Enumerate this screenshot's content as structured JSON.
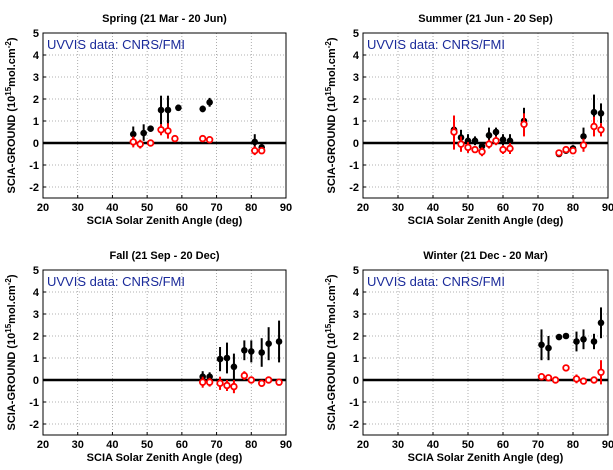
{
  "colors": {
    "satellite_pos": "#000000",
    "satellite_neg": "#ff0000",
    "note": "#1a2a9a",
    "zero_line": "#000000",
    "grid": "#999999"
  },
  "chart_data": [
    {
      "type": "scatter",
      "title": "Spring (21 Mar - 20 Jun)",
      "annotation": "UVVIS data: CNRS/FMI",
      "xlabel": "SCIA Solar Zenith Angle (deg)",
      "ylabel": "SCIA-GROUND (10",
      "ylabel_sup": "15",
      "ylabel_tail": "mol.cm",
      "ylabel_sup2": "-2",
      "ylabel_end": ")",
      "xlim": [
        20,
        90
      ],
      "ylim": [
        -2.5,
        5
      ],
      "xticks": [
        20,
        30,
        40,
        50,
        60,
        70,
        80,
        90
      ],
      "yticks": [
        -2,
        -1,
        0,
        1,
        2,
        3,
        4,
        5
      ],
      "grid": true,
      "series": [
        {
          "marker": "filled-black",
          "points": [
            {
              "x": 46,
              "y": 0.4,
              "lo": 0.1,
              "hi": 0.75
            },
            {
              "x": 49,
              "y": 0.45,
              "lo": 0.1,
              "hi": 0.85
            },
            {
              "x": 51,
              "y": 0.65,
              "lo": 0.55,
              "hi": 0.75
            },
            {
              "x": 54,
              "y": 1.5,
              "lo": 0.85,
              "hi": 2.15
            },
            {
              "x": 56,
              "y": 1.5,
              "lo": 0.85,
              "hi": 2.15
            },
            {
              "x": 59,
              "y": 1.6,
              "lo": 1.5,
              "hi": 1.75
            },
            {
              "x": 66,
              "y": 1.55,
              "lo": 1.4,
              "hi": 1.7
            },
            {
              "x": 68,
              "y": 1.85,
              "lo": 1.65,
              "hi": 2.05
            },
            {
              "x": 81,
              "y": 0.05,
              "lo": -0.3,
              "hi": 0.4
            },
            {
              "x": 83,
              "y": -0.2,
              "lo": -0.35,
              "hi": -0.05
            }
          ]
        },
        {
          "marker": "open-red",
          "points": [
            {
              "x": 46,
              "y": 0.05,
              "lo": -0.2,
              "hi": 0.3
            },
            {
              "x": 48,
              "y": -0.05,
              "lo": -0.25,
              "hi": 0.15
            },
            {
              "x": 51,
              "y": 0.0,
              "lo": -0.1,
              "hi": 0.1
            },
            {
              "x": 54,
              "y": 0.6,
              "lo": 0.35,
              "hi": 0.85
            },
            {
              "x": 56,
              "y": 0.55,
              "lo": 0.2,
              "hi": 0.9
            },
            {
              "x": 58,
              "y": 0.2,
              "lo": 0.05,
              "hi": 0.35
            },
            {
              "x": 66,
              "y": 0.2,
              "lo": 0.1,
              "hi": 0.3
            },
            {
              "x": 68,
              "y": 0.15,
              "lo": 0.0,
              "hi": 0.3
            },
            {
              "x": 81,
              "y": -0.35,
              "lo": -0.55,
              "hi": -0.15
            },
            {
              "x": 83,
              "y": -0.35,
              "lo": -0.5,
              "hi": -0.2
            }
          ]
        }
      ]
    },
    {
      "type": "scatter",
      "title": "Summer (21 Jun - 20 Sep)",
      "annotation": "UVVIS data: CNRS/FMI",
      "xlabel": "SCIA Solar Zenith Angle (deg)",
      "ylabel": "SCIA-GROUND (10",
      "ylabel_sup": "15",
      "ylabel_tail": "mol.cm",
      "ylabel_sup2": "-2",
      "ylabel_end": ")",
      "xlim": [
        20,
        90
      ],
      "ylim": [
        -2.5,
        5
      ],
      "xticks": [
        20,
        30,
        40,
        50,
        60,
        70,
        80,
        90
      ],
      "yticks": [
        -2,
        -1,
        0,
        1,
        2,
        3,
        4,
        5
      ],
      "grid": true,
      "series": [
        {
          "marker": "filled-black",
          "points": [
            {
              "x": 46,
              "y": 0.6,
              "lo": 0.1,
              "hi": 1.1
            },
            {
              "x": 48,
              "y": 0.25,
              "lo": -0.1,
              "hi": 0.6
            },
            {
              "x": 50,
              "y": 0.1,
              "lo": -0.2,
              "hi": 0.4
            },
            {
              "x": 52,
              "y": 0.1,
              "lo": -0.1,
              "hi": 0.3
            },
            {
              "x": 54,
              "y": -0.15,
              "lo": -0.3,
              "hi": 0.0
            },
            {
              "x": 56,
              "y": 0.35,
              "lo": 0.0,
              "hi": 0.7
            },
            {
              "x": 58,
              "y": 0.5,
              "lo": 0.3,
              "hi": 0.7
            },
            {
              "x": 60,
              "y": 0.15,
              "lo": -0.1,
              "hi": 0.4
            },
            {
              "x": 62,
              "y": 0.1,
              "lo": -0.2,
              "hi": 0.4
            },
            {
              "x": 66,
              "y": 1.0,
              "lo": 0.4,
              "hi": 1.6
            },
            {
              "x": 76,
              "y": -0.5,
              "lo": -0.6,
              "hi": -0.4
            },
            {
              "x": 78,
              "y": -0.35,
              "lo": -0.45,
              "hi": -0.25
            },
            {
              "x": 80,
              "y": -0.25,
              "lo": -0.4,
              "hi": -0.1
            },
            {
              "x": 83,
              "y": 0.3,
              "lo": -0.1,
              "hi": 0.7
            },
            {
              "x": 86,
              "y": 1.4,
              "lo": 0.6,
              "hi": 2.2
            },
            {
              "x": 88,
              "y": 1.35,
              "lo": 0.9,
              "hi": 1.8
            }
          ]
        },
        {
          "marker": "open-red",
          "points": [
            {
              "x": 46,
              "y": 0.5,
              "lo": -0.3,
              "hi": 1.25
            },
            {
              "x": 48,
              "y": -0.05,
              "lo": -0.4,
              "hi": 0.3
            },
            {
              "x": 50,
              "y": -0.2,
              "lo": -0.45,
              "hi": 0.05
            },
            {
              "x": 52,
              "y": -0.3,
              "lo": -0.45,
              "hi": -0.15
            },
            {
              "x": 54,
              "y": -0.4,
              "lo": -0.6,
              "hi": -0.2
            },
            {
              "x": 56,
              "y": -0.05,
              "lo": -0.25,
              "hi": 0.15
            },
            {
              "x": 58,
              "y": 0.1,
              "lo": -0.1,
              "hi": 0.3
            },
            {
              "x": 60,
              "y": -0.3,
              "lo": -0.5,
              "hi": -0.1
            },
            {
              "x": 62,
              "y": -0.25,
              "lo": -0.5,
              "hi": 0.0
            },
            {
              "x": 66,
              "y": 0.85,
              "lo": 0.3,
              "hi": 1.35
            },
            {
              "x": 76,
              "y": -0.45,
              "lo": -0.55,
              "hi": -0.35
            },
            {
              "x": 78,
              "y": -0.3,
              "lo": -0.4,
              "hi": -0.2
            },
            {
              "x": 80,
              "y": -0.35,
              "lo": -0.5,
              "hi": -0.2
            },
            {
              "x": 83,
              "y": -0.1,
              "lo": -0.4,
              "hi": 0.2
            },
            {
              "x": 86,
              "y": 0.75,
              "lo": 0.3,
              "hi": 1.2
            },
            {
              "x": 88,
              "y": 0.6,
              "lo": 0.3,
              "hi": 0.9
            }
          ]
        }
      ]
    },
    {
      "type": "scatter",
      "title": "Fall (21 Sep - 20 Dec)",
      "annotation": "UVVIS data: CNRS/FMI",
      "xlabel": "SCIA Solar Zenith Angle (deg)",
      "ylabel": "SCIA-GROUND (10",
      "ylabel_sup": "15",
      "ylabel_tail": "mol.cm",
      "ylabel_sup2": "-2",
      "ylabel_end": ")",
      "xlim": [
        20,
        90
      ],
      "ylim": [
        -2.5,
        5
      ],
      "xticks": [
        20,
        30,
        40,
        50,
        60,
        70,
        80,
        90
      ],
      "yticks": [
        -2,
        -1,
        0,
        1,
        2,
        3,
        4,
        5
      ],
      "grid": true,
      "series": [
        {
          "marker": "filled-black",
          "points": [
            {
              "x": 66,
              "y": 0.15,
              "lo": -0.1,
              "hi": 0.4
            },
            {
              "x": 68,
              "y": 0.15,
              "lo": -0.05,
              "hi": 0.35
            },
            {
              "x": 71,
              "y": 0.95,
              "lo": 0.4,
              "hi": 1.5
            },
            {
              "x": 73,
              "y": 1.0,
              "lo": 0.3,
              "hi": 1.7
            },
            {
              "x": 75,
              "y": 0.6,
              "lo": 0.0,
              "hi": 1.2
            },
            {
              "x": 78,
              "y": 1.35,
              "lo": 0.9,
              "hi": 1.8
            },
            {
              "x": 80,
              "y": 1.3,
              "lo": 0.8,
              "hi": 1.8
            },
            {
              "x": 83,
              "y": 1.25,
              "lo": 0.6,
              "hi": 1.9
            },
            {
              "x": 85,
              "y": 1.65,
              "lo": 0.9,
              "hi": 2.4
            },
            {
              "x": 88,
              "y": 1.75,
              "lo": 0.8,
              "hi": 2.7
            }
          ]
        },
        {
          "marker": "open-red",
          "points": [
            {
              "x": 66,
              "y": -0.1,
              "lo": -0.35,
              "hi": 0.15
            },
            {
              "x": 68,
              "y": -0.1,
              "lo": -0.3,
              "hi": 0.1
            },
            {
              "x": 71,
              "y": -0.15,
              "lo": -0.45,
              "hi": 0.15
            },
            {
              "x": 73,
              "y": -0.25,
              "lo": -0.5,
              "hi": 0.0
            },
            {
              "x": 75,
              "y": -0.3,
              "lo": -0.6,
              "hi": 0.0
            },
            {
              "x": 78,
              "y": 0.2,
              "lo": 0.0,
              "hi": 0.4
            },
            {
              "x": 80,
              "y": 0.0,
              "lo": -0.15,
              "hi": 0.15
            },
            {
              "x": 83,
              "y": -0.15,
              "lo": -0.3,
              "hi": 0.0
            },
            {
              "x": 85,
              "y": 0.0,
              "lo": -0.15,
              "hi": 0.15
            },
            {
              "x": 88,
              "y": -0.1,
              "lo": -0.25,
              "hi": 0.05
            }
          ]
        }
      ]
    },
    {
      "type": "scatter",
      "title": "Winter (21 Dec - 20 Mar)",
      "annotation": "UVVIS data: CNRS/FMI",
      "xlabel": "SCIA Solar Zenith Angle (deg)",
      "ylabel": "SCIA-GROUND (10",
      "ylabel_sup": "15",
      "ylabel_tail": "mol.cm",
      "ylabel_sup2": "-2",
      "ylabel_end": ")",
      "xlim": [
        20,
        90
      ],
      "ylim": [
        -2.5,
        5
      ],
      "xticks": [
        20,
        30,
        40,
        50,
        60,
        70,
        80,
        90
      ],
      "yticks": [
        -2,
        -1,
        0,
        1,
        2,
        3,
        4,
        5
      ],
      "grid": true,
      "series": [
        {
          "marker": "filled-black",
          "points": [
            {
              "x": 71,
              "y": 1.6,
              "lo": 0.9,
              "hi": 2.3
            },
            {
              "x": 73,
              "y": 1.45,
              "lo": 0.9,
              "hi": 2.0
            },
            {
              "x": 76,
              "y": 1.95,
              "lo": 1.85,
              "hi": 2.05
            },
            {
              "x": 78,
              "y": 2.0,
              "lo": 1.95,
              "hi": 2.05
            },
            {
              "x": 81,
              "y": 1.75,
              "lo": 1.3,
              "hi": 2.2
            },
            {
              "x": 83,
              "y": 1.85,
              "lo": 1.4,
              "hi": 2.3
            },
            {
              "x": 86,
              "y": 1.75,
              "lo": 1.4,
              "hi": 2.1
            },
            {
              "x": 88,
              "y": 2.6,
              "lo": 1.9,
              "hi": 3.3
            }
          ]
        },
        {
          "marker": "open-red",
          "points": [
            {
              "x": 71,
              "y": 0.15,
              "lo": 0.0,
              "hi": 0.3
            },
            {
              "x": 73,
              "y": 0.1,
              "lo": 0.0,
              "hi": 0.2
            },
            {
              "x": 75,
              "y": 0.0,
              "lo": -0.05,
              "hi": 0.05
            },
            {
              "x": 78,
              "y": 0.55,
              "lo": 0.45,
              "hi": 0.65
            },
            {
              "x": 81,
              "y": 0.05,
              "lo": -0.15,
              "hi": 0.25
            },
            {
              "x": 83,
              "y": -0.05,
              "lo": -0.2,
              "hi": 0.1
            },
            {
              "x": 86,
              "y": 0.0,
              "lo": -0.1,
              "hi": 0.1
            },
            {
              "x": 88,
              "y": 0.35,
              "lo": -0.2,
              "hi": 0.9
            }
          ]
        }
      ]
    }
  ]
}
